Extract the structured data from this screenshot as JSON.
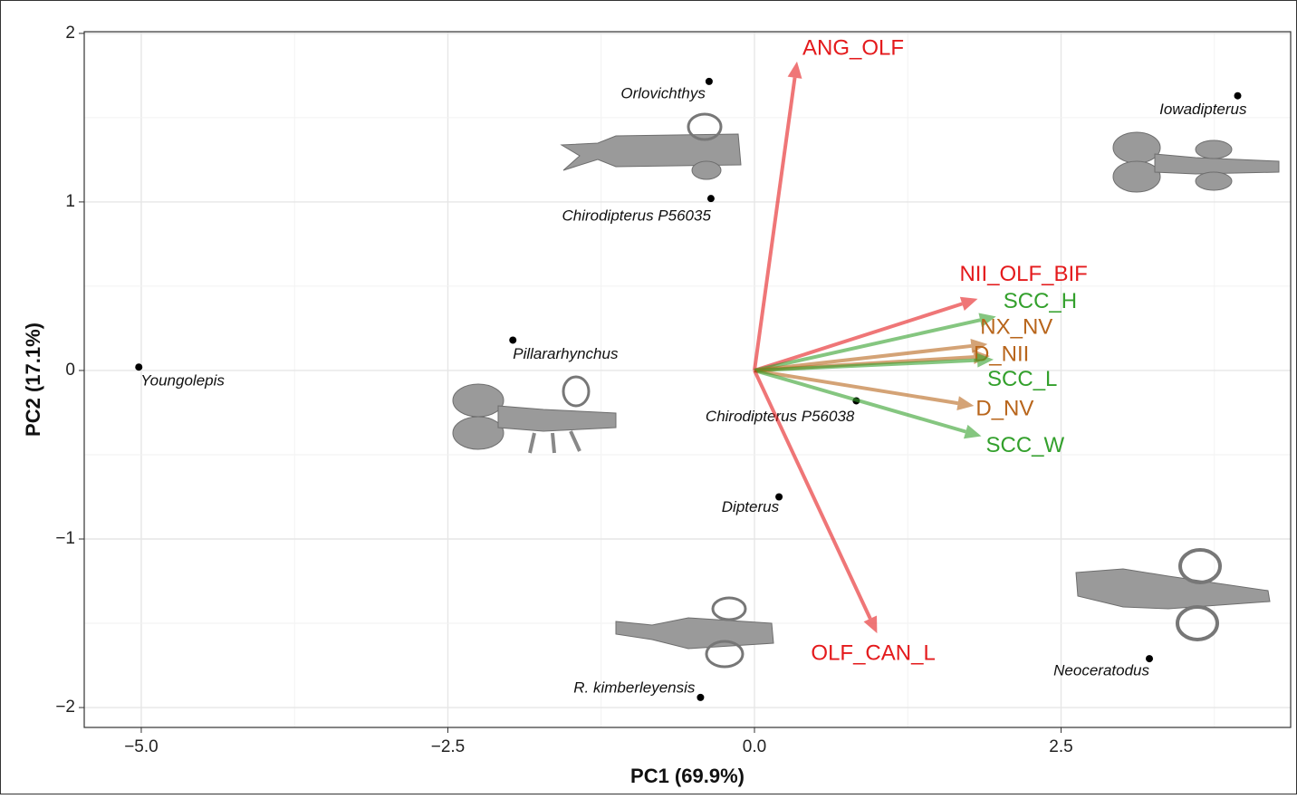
{
  "chart_data": {
    "type": "biplot",
    "x_label": "PC1 (69.9%)",
    "y_label": "PC2 (17.1%)",
    "xlim": [
      -5.465,
      4.372
    ],
    "ylim": [
      -2.118,
      2.01
    ],
    "xticks": [
      {
        "value": -5,
        "label": "−5.0"
      },
      {
        "value": -2.5,
        "label": "−2.5"
      },
      {
        "value": 0,
        "label": "0.0"
      },
      {
        "value": 2.5,
        "label": "2.5"
      }
    ],
    "yticks": [
      {
        "value": -2,
        "label": "−2"
      },
      {
        "value": -1,
        "label": "−1"
      },
      0,
      1,
      2
    ],
    "grid": true,
    "points": {
      "color": "#000000",
      "labels": [
        "Youngolepis",
        "Orlovichthys",
        "Chirodipterus P56035",
        "Iowadipterus",
        "Pillararhynchus",
        "Chirodipterus P56038",
        "Dipterus",
        "R. kimberleyensis",
        "Neoceratodus"
      ],
      "x": [
        -5.02,
        -0.37,
        -0.355,
        3.94,
        -1.97,
        0.83,
        0.2,
        -0.44,
        3.22
      ],
      "y": [
        0.02,
        1.715,
        1.02,
        1.63,
        0.18,
        -0.18,
        -0.75,
        -1.94,
        -1.71
      ]
    },
    "loadings": [
      {
        "name": "ANG_OLF",
        "color": "#e41a1c",
        "x": 0.347,
        "y": 1.833
      },
      {
        "name": "NII_OLF_BIF",
        "color": "#e41a1c",
        "x": 1.82,
        "y": 0.425
      },
      {
        "name": "SCC_H",
        "color": "#33a02c",
        "x": 1.97,
        "y": 0.32
      },
      {
        "name": "NX_NV",
        "color": "#b8651b",
        "x": 1.9,
        "y": 0.156
      },
      {
        "name": "D_NII",
        "color": "#b8651b",
        "x": 1.92,
        "y": 0.086
      },
      {
        "name": "SCC_L",
        "color": "#33a02c",
        "x": 1.95,
        "y": 0.065
      },
      {
        "name": "D_NV",
        "color": "#b8651b",
        "x": 1.79,
        "y": -0.21
      },
      {
        "name": "SCC_W",
        "color": "#33a02c",
        "x": 1.85,
        "y": -0.39
      },
      {
        "name": "OLF_CAN_L",
        "color": "#e41a1c",
        "x": 1.0,
        "y": -1.56
      }
    ]
  }
}
